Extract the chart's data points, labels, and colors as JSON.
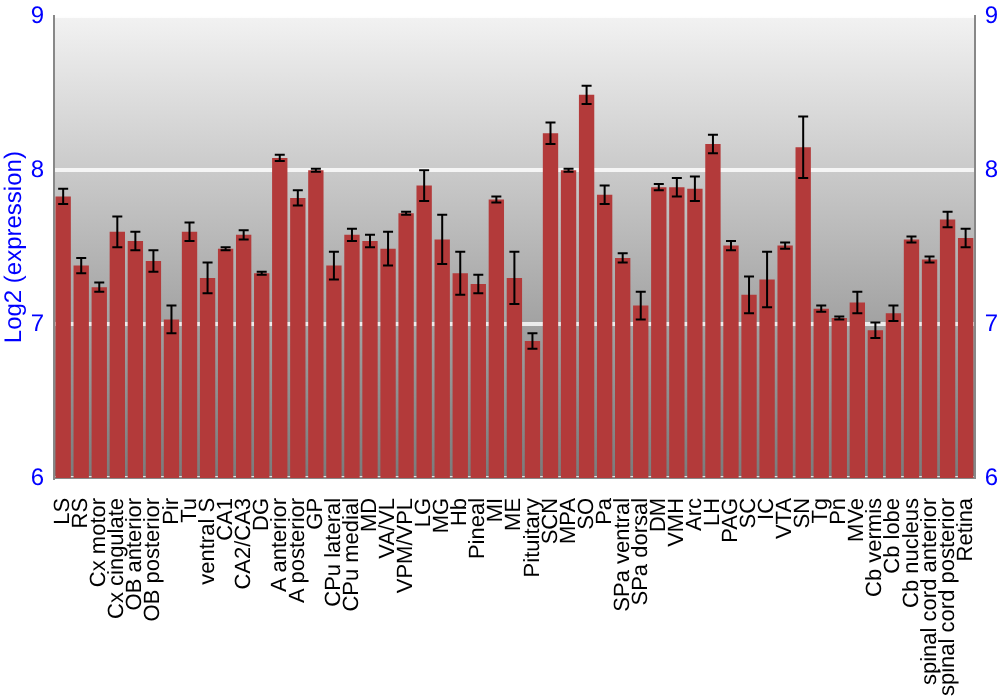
{
  "chart_data": {
    "type": "bar",
    "ylabel": "Log2 (expression)",
    "categories": [
      "LS",
      "RS",
      "Cx motor",
      "Cx cingulate",
      "OB anterior",
      "OB posterior",
      "Pir",
      "Tu",
      "ventral S",
      "CA1",
      "CA2/CA3",
      "DG",
      "A anterior",
      "A posterior",
      "GP",
      "CPu lateral",
      "CPu medial",
      "MD",
      "VA/VL",
      "VPM/VPL",
      "LG",
      "MG",
      "Hb",
      "Pineal",
      "MI",
      "ME",
      "Pituitary",
      "SCN",
      "MPA",
      "SO",
      "Pa",
      "SPa ventral",
      "SPa dorsal",
      "DM",
      "VMH",
      "Arc",
      "LH",
      "PAG",
      "SC",
      "IC",
      "VTA",
      "SN",
      "Tg",
      "Pn",
      "MVe",
      "Cb vermis",
      "Cb lobe",
      "Cb nucleus",
      "spinal cord anterior",
      "spinal cord posterior",
      "Retina"
    ],
    "values": [
      7.83,
      7.38,
      7.24,
      7.6,
      7.54,
      7.41,
      7.03,
      7.6,
      7.3,
      7.49,
      7.58,
      7.33,
      8.08,
      7.82,
      8.0,
      7.38,
      7.58,
      7.54,
      7.49,
      7.72,
      7.9,
      7.55,
      7.33,
      7.26,
      7.81,
      7.3,
      6.89,
      8.24,
      8.0,
      8.49,
      7.84,
      7.43,
      7.12,
      7.89,
      7.89,
      7.88,
      8.17,
      7.51,
      7.19,
      7.29,
      7.51,
      8.15,
      7.1,
      7.04,
      7.14,
      6.96,
      7.07,
      7.55,
      7.42,
      7.68,
      7.56
    ],
    "errors": [
      0.05,
      0.05,
      0.03,
      0.1,
      0.06,
      0.07,
      0.09,
      0.06,
      0.1,
      0.01,
      0.03,
      0.01,
      0.02,
      0.05,
      0.01,
      0.09,
      0.04,
      0.04,
      0.11,
      0.01,
      0.1,
      0.16,
      0.14,
      0.06,
      0.02,
      0.17,
      0.05,
      0.07,
      0.01,
      0.06,
      0.06,
      0.03,
      0.09,
      0.02,
      0.06,
      0.08,
      0.06,
      0.03,
      0.12,
      0.18,
      0.02,
      0.2,
      0.02,
      0.01,
      0.07,
      0.05,
      0.05,
      0.02,
      0.02,
      0.05,
      0.06
    ],
    "color": "#b33a3a",
    "ylim": [
      6,
      9
    ],
    "yticks": [
      6,
      7,
      8,
      9
    ],
    "y2lim": [
      6,
      9
    ],
    "y2ticks": [
      6,
      7,
      8,
      9
    ],
    "grid": "y",
    "legend": false
  }
}
